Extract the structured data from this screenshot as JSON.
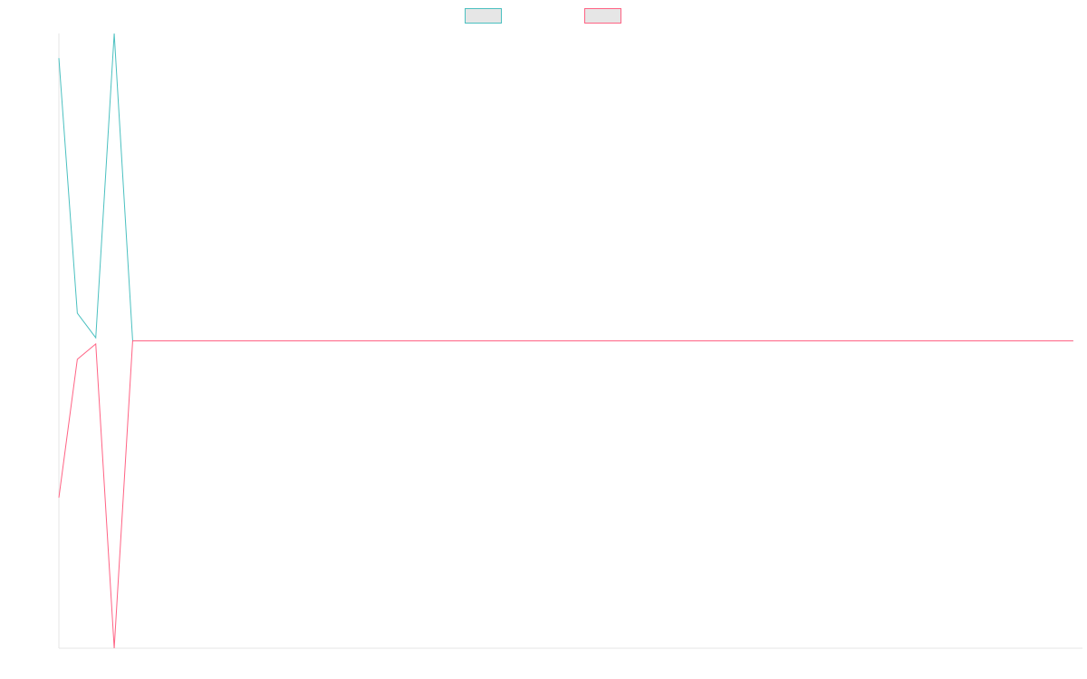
{
  "chart_data": {
    "type": "line",
    "title": "",
    "xlabel": "",
    "ylabel": "",
    "grid": false,
    "legend_position": "top",
    "x": [
      0,
      1,
      2,
      3,
      4,
      5,
      6,
      7,
      8,
      9,
      10,
      11,
      12,
      13,
      14,
      15,
      16,
      17,
      18,
      19,
      20,
      21,
      22,
      23,
      24,
      25,
      26,
      27,
      28,
      29,
      30,
      31,
      32,
      33,
      34,
      35,
      36,
      37,
      38,
      39,
      40,
      41,
      42,
      43,
      44,
      45,
      46,
      47,
      48,
      49,
      50,
      51,
      52,
      53,
      54,
      55
    ],
    "xlim": [
      0,
      55.5
    ],
    "ylim": [
      -1.0,
      1.0
    ],
    "series": [
      {
        "name": "",
        "color": "#4bc0c0",
        "values": [
          0.92,
          0.09,
          0.01,
          1.0,
          0.0,
          0,
          0,
          0,
          0,
          0,
          0,
          0,
          0,
          0,
          0,
          0,
          0,
          0,
          0,
          0,
          0,
          0,
          0,
          0,
          0,
          0,
          0,
          0,
          0,
          0,
          0,
          0,
          0,
          0,
          0,
          0,
          0,
          0,
          0,
          0,
          0,
          0,
          0,
          0,
          0,
          0,
          0,
          0,
          0,
          0,
          0,
          0,
          0,
          0,
          0,
          0
        ]
      },
      {
        "name": "",
        "color": "#ff6384",
        "values": [
          -0.51,
          -0.06,
          -0.01,
          -1.0,
          0.0,
          0,
          0,
          0,
          0,
          0,
          0,
          0,
          0,
          0,
          0,
          0,
          0,
          0,
          0,
          0,
          0,
          0,
          0,
          0,
          0,
          0,
          0,
          0,
          0,
          0,
          0,
          0,
          0,
          0,
          0,
          0,
          0,
          0,
          0,
          0,
          0,
          0,
          0,
          0,
          0,
          0,
          0,
          0,
          0,
          0,
          0,
          0,
          0,
          0,
          0,
          0
        ]
      }
    ]
  }
}
